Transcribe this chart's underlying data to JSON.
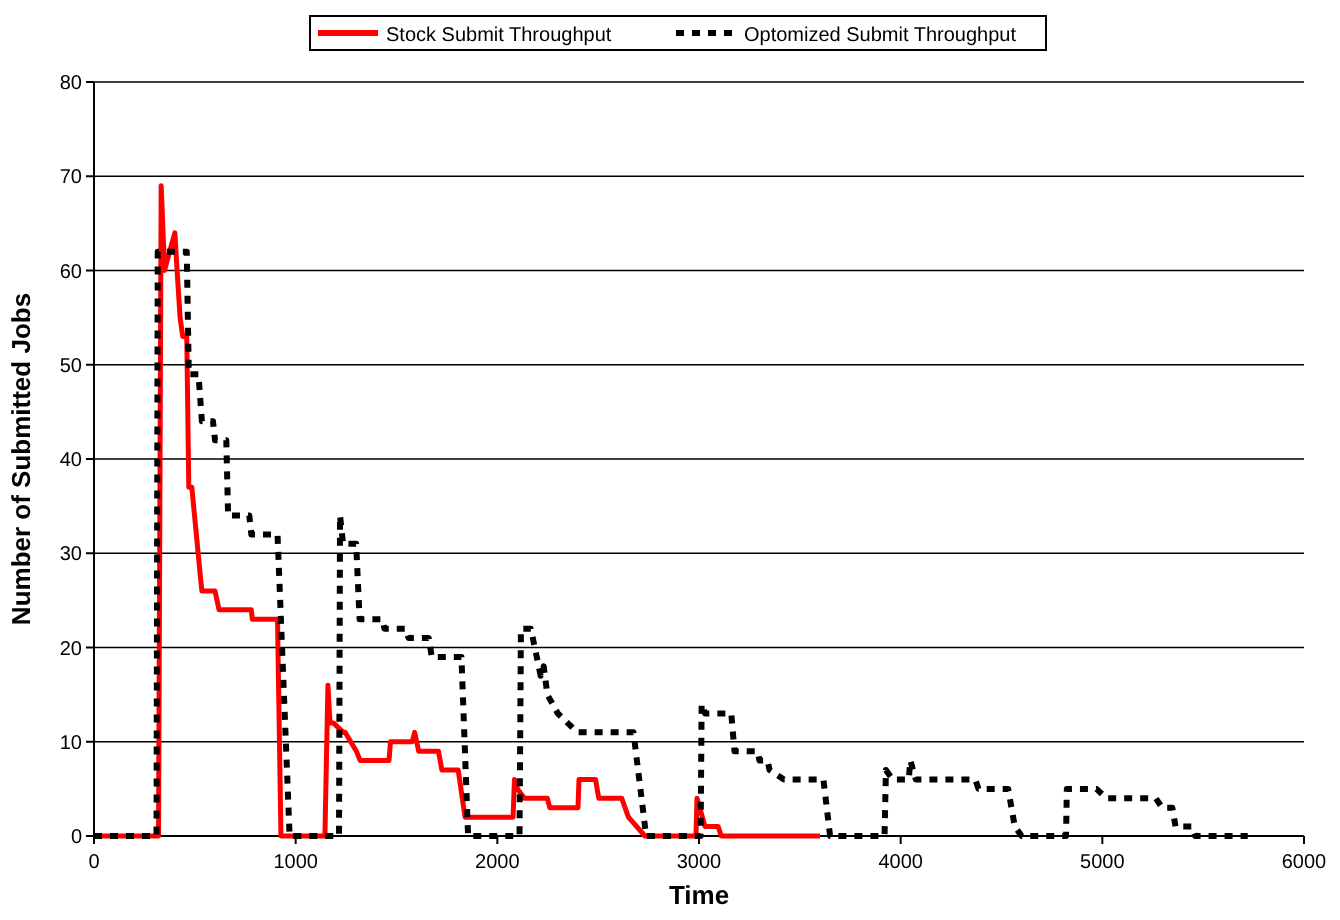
{
  "chart_data": {
    "type": "line",
    "xlabel": "Time",
    "ylabel": "Number of Submitted Jobs",
    "xlim": [
      0,
      6000
    ],
    "xticks": [
      0,
      1000,
      2000,
      3000,
      4000,
      5000,
      6000
    ],
    "ylim": [
      0,
      80
    ],
    "yticks": [
      0,
      10,
      20,
      30,
      40,
      50,
      60,
      70,
      80
    ],
    "grid": "y",
    "legend": "top",
    "series": [
      {
        "name": "Stock Submit Throughput",
        "color": "#ff0000",
        "line_style": "solid",
        "x": [
          0,
          320,
          333,
          350,
          362,
          401,
          412,
          427,
          440,
          460,
          470,
          485,
          530,
          535,
          600,
          610,
          620,
          656,
          780,
          785,
          910,
          927,
          1145,
          1160,
          1170,
          1187,
          1236,
          1245,
          1301,
          1320,
          1350,
          1463,
          1470,
          1578,
          1590,
          1610,
          1708,
          1725,
          1806,
          1840,
          2078,
          2085,
          2100,
          2134,
          2248,
          2260,
          2313,
          2400,
          2405,
          2487,
          2503,
          2617,
          2650,
          2732,
          2985,
          2990,
          3030,
          3095,
          3110,
          3600
        ],
        "values": [
          0,
          0,
          69,
          60,
          61,
          64,
          60,
          55,
          53,
          53,
          37,
          37,
          27,
          26,
          26,
          25,
          24,
          24,
          24,
          23,
          23,
          0,
          0,
          16,
          12,
          12,
          11,
          11,
          9,
          8,
          8,
          8,
          10,
          10,
          11,
          9,
          9,
          7,
          7,
          2,
          2,
          6,
          5,
          4,
          4,
          3,
          3,
          3,
          6,
          6,
          4,
          4,
          2,
          0,
          0,
          4,
          1,
          1,
          0,
          0
        ]
      },
      {
        "name": "Optomized Submit Throughput",
        "color": "#000000",
        "line_style": "dashed",
        "x": [
          0,
          310,
          316,
          460,
          470,
          518,
          535,
          590,
          600,
          656,
          665,
          770,
          780,
          910,
          970,
          1215,
          1220,
          1235,
          1300,
          1317,
          1430,
          1440,
          1545,
          1560,
          1660,
          1675,
          1822,
          1855,
          2110,
          2117,
          2166,
          2215,
          2230,
          2248,
          2300,
          2397,
          2675,
          2738,
          3008,
          3013,
          3030,
          3160,
          3176,
          3290,
          3300,
          3340,
          3350,
          3421,
          3617,
          3650,
          3920,
          3927,
          3960,
          4040,
          4048,
          4075,
          4370,
          4386,
          4533,
          4566,
          4600,
          4820,
          4824,
          4971,
          5020,
          5265,
          5297,
          5347,
          5363,
          5444,
          5460,
          5721
        ],
        "values": [
          0,
          0,
          62,
          62,
          49,
          49,
          44,
          44,
          42,
          42,
          34,
          34,
          32,
          32,
          0,
          0,
          34,
          31,
          31,
          23,
          23,
          22,
          22,
          21,
          21,
          19,
          19,
          0,
          0,
          22,
          22,
          17,
          18,
          15,
          13,
          11,
          11,
          0,
          0,
          14,
          13,
          13,
          9,
          9,
          8,
          8,
          7,
          6,
          6,
          0,
          0,
          7,
          6,
          6,
          8,
          6,
          6,
          5,
          5,
          1,
          0,
          0,
          5,
          5,
          4,
          4,
          3,
          3,
          1,
          1,
          0,
          0
        ]
      }
    ]
  }
}
